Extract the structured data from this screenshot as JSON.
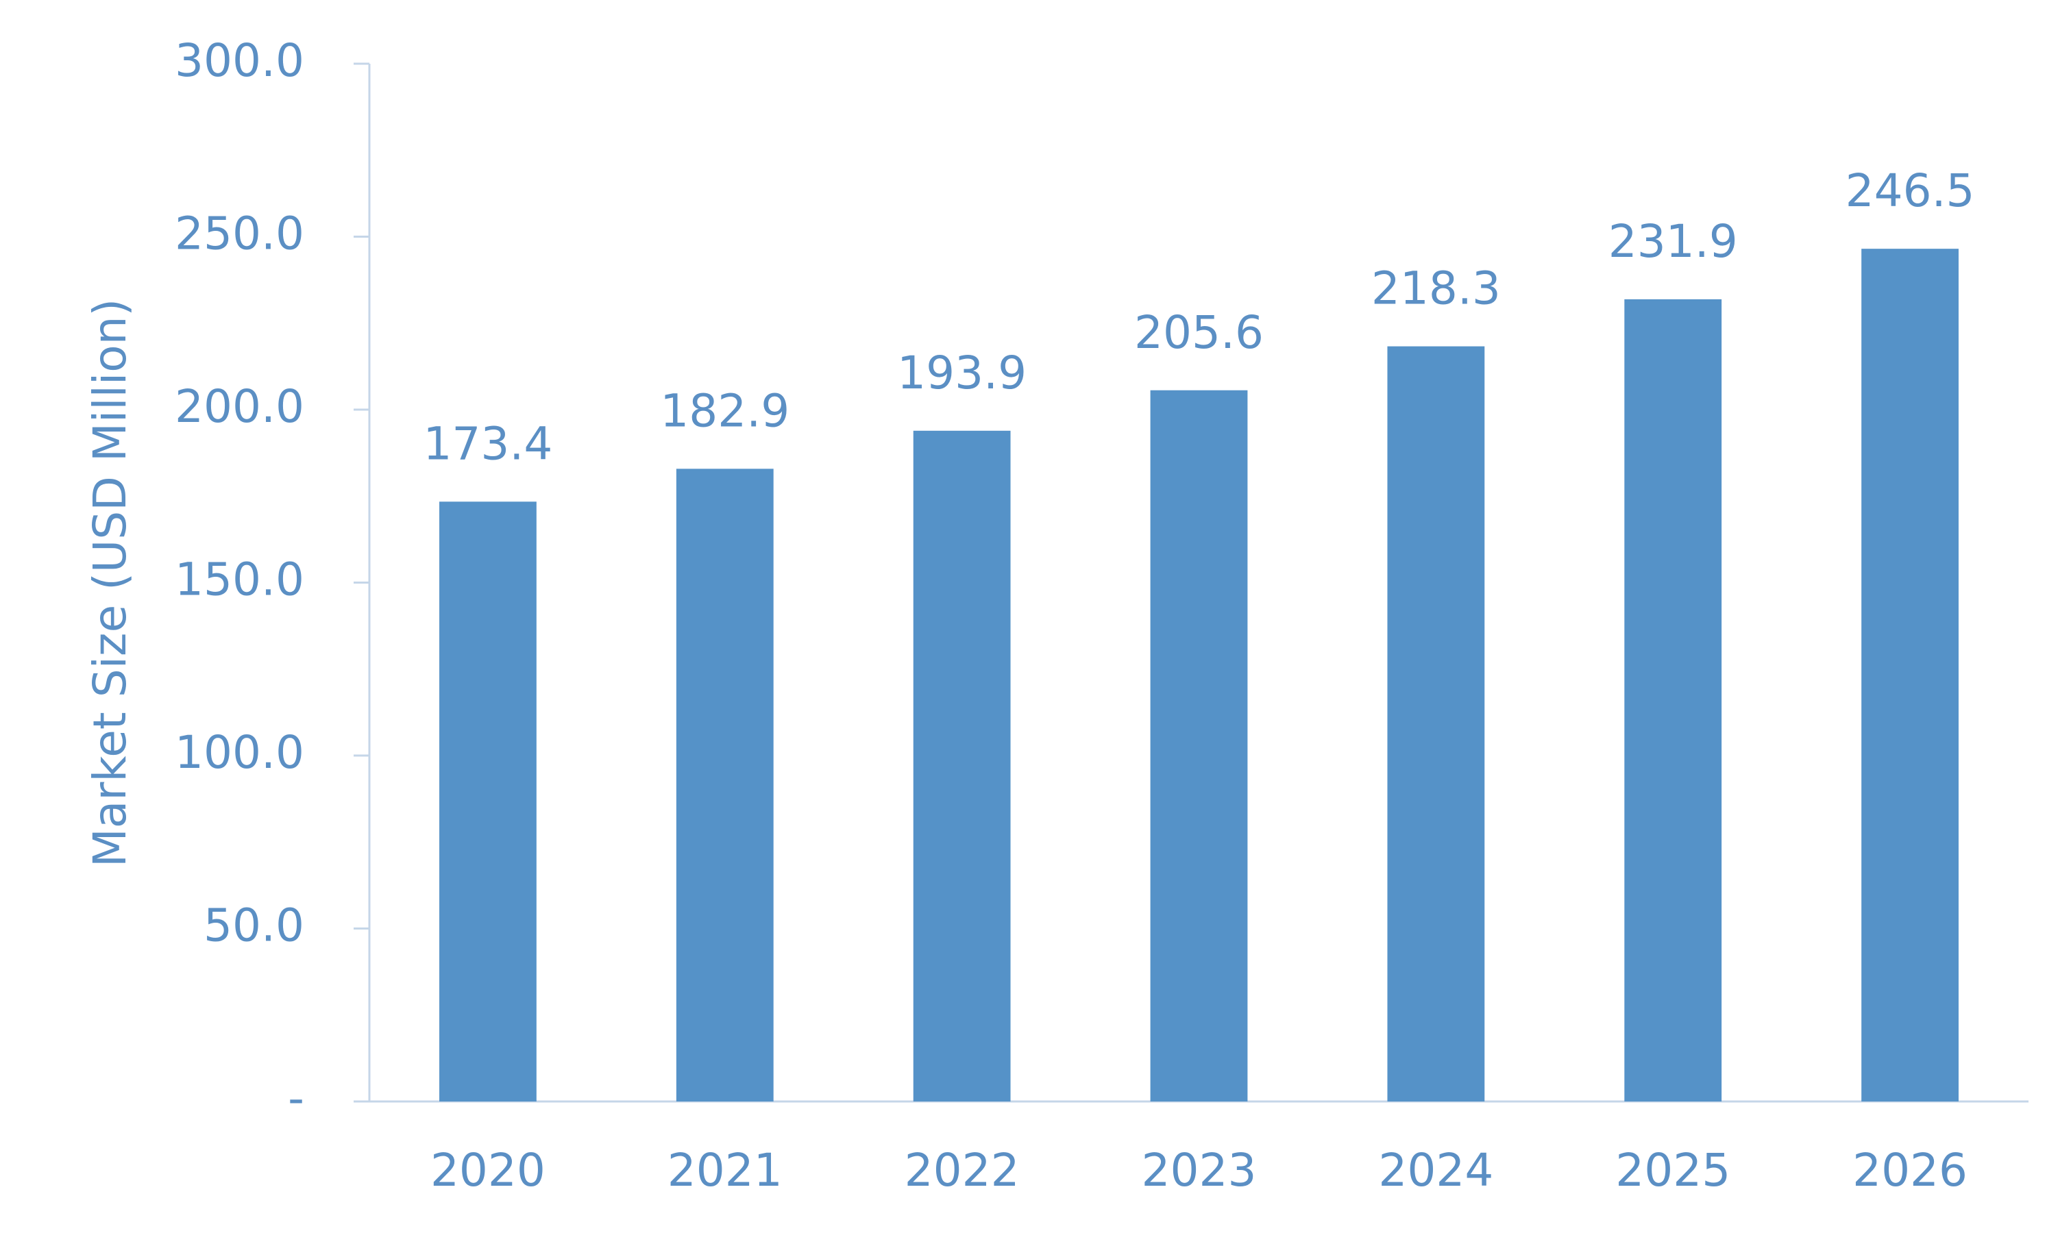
{
  "chart_data": {
    "type": "bar",
    "y_label": "Market Size (USD Million)",
    "categories": [
      "2020",
      "2021",
      "2022",
      "2023",
      "2024",
      "2025",
      "2026"
    ],
    "values": [
      173.4,
      182.9,
      193.9,
      205.6,
      218.3,
      231.9,
      246.5
    ],
    "color": "#5592c8",
    "ylim": [
      0,
      300
    ],
    "yticks": [
      {
        "value": 0,
        "label": "-"
      },
      {
        "value": 50,
        "label": "50.0"
      },
      {
        "value": 100,
        "label": "100.0"
      },
      {
        "value": 150,
        "label": "150.0"
      },
      {
        "value": 200,
        "label": "200.0"
      },
      {
        "value": 250,
        "label": "250.0"
      },
      {
        "value": 300,
        "label": "300.0"
      }
    ],
    "grid": false
  }
}
